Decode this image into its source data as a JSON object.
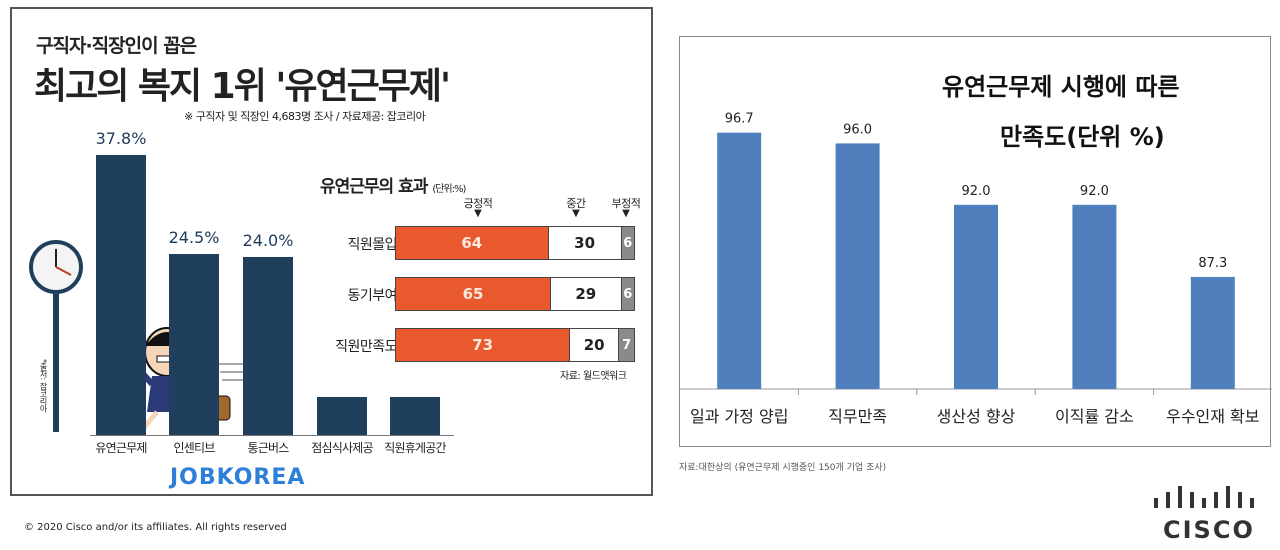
{
  "left": {
    "subtitle": "구직자·직장인이 꼽은",
    "title": "최고의 복지 1위 '유연근무제'",
    "note": "※ 구직자 및 직장인 4,683명 조사 / 자료제공: 잡코리아",
    "brand": "JOBKOREA",
    "vertical_text": "*출처: 잡코리아",
    "effect": {
      "title": "유연근무의 효과",
      "unit": "(단위:%)",
      "headers": [
        "긍정적",
        "중간",
        "부정적"
      ],
      "source": "자료: 월드앳워크"
    }
  },
  "right": {
    "title_line1": "유연근무제 시행에 따른",
    "title_line2": "만족도(단위 %)",
    "source": "자료:대한상의 (유연근무제 시행중인 150개 기업 조사)"
  },
  "footer": {
    "copyright": "© 2020  Cisco and/or its affiliates. All rights reserved",
    "logo_text": "CISCO"
  },
  "colors": {
    "navy": "#1f3f5c",
    "orange": "#e85a2e",
    "grey": "#8a8a8a",
    "blue": "#4f80bd",
    "brand_blue": "#2e7fd9"
  },
  "chart_data": [
    {
      "type": "bar",
      "title": "최고의 복지 1위 '유연근무제'",
      "categories": [
        "유연근무제",
        "인센티브",
        "통근버스",
        "점심식사제공",
        "직원휴게공간"
      ],
      "values": [
        37.8,
        24.5,
        24.0,
        null,
        null
      ],
      "value_labels": [
        "37.8%",
        "24.5%",
        "24.0%",
        "",
        ""
      ],
      "ylabel": "",
      "ylim": [
        0,
        37.8
      ]
    },
    {
      "type": "bar",
      "stacked": true,
      "orientation": "horizontal",
      "title": "유연근무의 효과",
      "categories": [
        "직원몰입",
        "동기부여",
        "직원만족도"
      ],
      "series": [
        {
          "name": "긍정적",
          "values": [
            64,
            65,
            73
          ]
        },
        {
          "name": "중간",
          "values": [
            30,
            29,
            20
          ]
        },
        {
          "name": "부정적",
          "values": [
            6,
            6,
            7
          ]
        }
      ],
      "xlim": [
        0,
        100
      ]
    },
    {
      "type": "bar",
      "title": "유연근무제 시행에 따른 만족도(단위 %)",
      "categories": [
        "일과 가정 양립",
        "직무만족",
        "생산성 향상",
        "이직률 감소",
        "우수인재 확보"
      ],
      "values": [
        96.7,
        96.0,
        92.0,
        92.0,
        87.3
      ],
      "value_labels": [
        "96.7",
        "96.0",
        "92.0",
        "92.0",
        "87.3"
      ],
      "ylim": [
        80,
        100
      ],
      "grid": false
    }
  ]
}
